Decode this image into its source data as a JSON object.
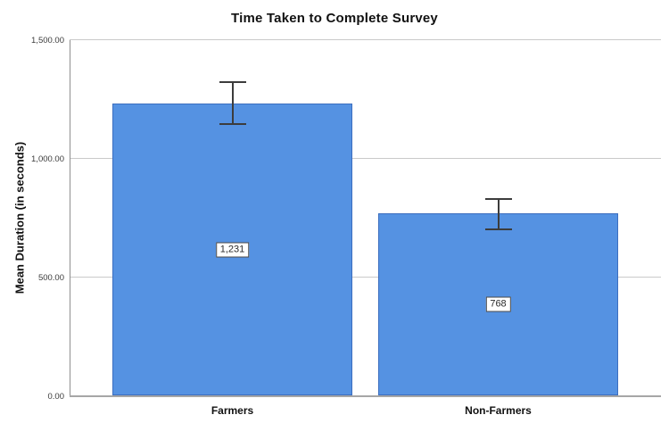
{
  "chart_data": {
    "type": "bar",
    "title": "Time Taken to Complete Survey",
    "xlabel": "",
    "ylabel": "Mean Duration (in seconds)",
    "categories": [
      "Farmers",
      "Non-Farmers"
    ],
    "values": [
      1231,
      768
    ],
    "value_labels": [
      "1,231",
      "768"
    ],
    "error_bars": [
      {
        "low": 1145,
        "high": 1322
      },
      {
        "low": 702,
        "high": 830
      }
    ],
    "ylim": [
      0,
      1500
    ],
    "yticks": [
      0,
      500,
      1000,
      1500
    ],
    "ytick_labels": [
      "0.00",
      "500.00",
      "1,000.00",
      "1,500.00"
    ],
    "grid": true,
    "legend": "none",
    "colors": {
      "bar_fill": "#5592e2",
      "bar_border": "#3c6ebf",
      "error_bar": "#3c3c3c",
      "gridline": "#c9c9c9",
      "y_axis_line": "#8f8f8f",
      "x_axis_line": "#a6a6a6",
      "text": "#111111",
      "background": "#ffffff"
    }
  }
}
